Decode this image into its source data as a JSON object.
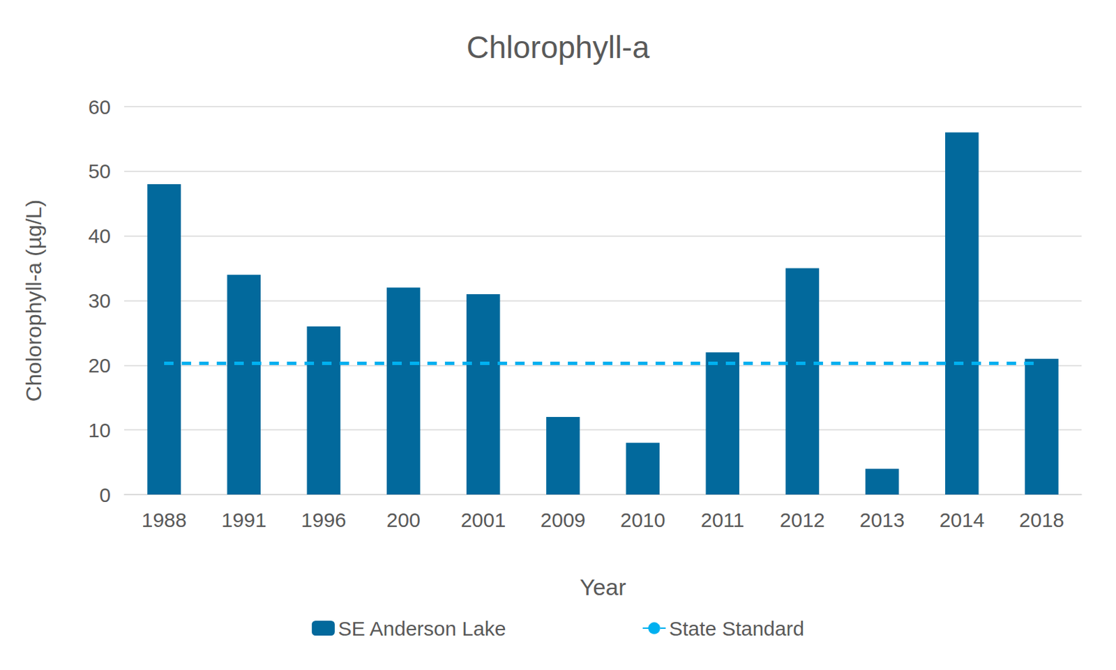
{
  "chart_data": {
    "type": "bar",
    "title": "Chlorophyll-a",
    "x_label": "Year",
    "y_label": "Cholorophyll-a (µg/L)",
    "categories": [
      "1988",
      "1991",
      "1996",
      "200",
      "2001",
      "2009",
      "2010",
      "2011",
      "2012",
      "2013",
      "2014",
      "2018"
    ],
    "series": [
      {
        "name": "SE Anderson Lake",
        "type": "bar",
        "color": "#02699c",
        "values": [
          48,
          34,
          26,
          32,
          31,
          12,
          8,
          22,
          35,
          4,
          56,
          21
        ]
      },
      {
        "name": "State Standard",
        "type": "line",
        "color": "#00b0f0",
        "line_style": "dashed",
        "values": [
          20.3,
          20.3,
          20.3,
          20.3,
          20.3,
          20.3,
          20.3,
          20.3,
          20.3,
          20.3,
          20.3,
          20.3
        ]
      }
    ],
    "ylim": [
      0,
      60
    ],
    "yticks": [
      0,
      10,
      20,
      30,
      40,
      50,
      60
    ],
    "grid": true,
    "legend": "bottom"
  }
}
